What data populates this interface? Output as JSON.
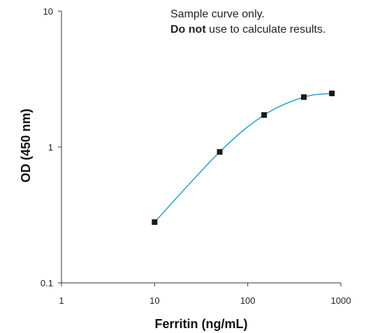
{
  "chart_data": {
    "type": "line",
    "xlabel": "Ferritin (ng/mL)",
    "ylabel": "OD (450 nm)",
    "x_scale": "log",
    "y_scale": "log",
    "xlim": [
      1,
      1000
    ],
    "ylim": [
      0.1,
      10
    ],
    "x_ticks": [
      1,
      10,
      100,
      1000
    ],
    "x_tick_labels": [
      "1",
      "10",
      "100",
      "1000"
    ],
    "y_ticks": [
      0.1,
      1,
      10
    ],
    "y_tick_labels": [
      "0.1",
      "1",
      "10"
    ],
    "grid": false,
    "series": [
      {
        "x": [
          10,
          50,
          150,
          400,
          800
        ],
        "y": [
          0.28,
          0.92,
          1.72,
          2.33,
          2.48
        ],
        "marker": "square",
        "marker_color": "#1a1a1a",
        "line_color": "#2aa3c8"
      }
    ],
    "annotation": {
      "line1": "Sample curve only.",
      "line2_bold": "Do not",
      "line2_rest": " use to calculate results."
    }
  }
}
